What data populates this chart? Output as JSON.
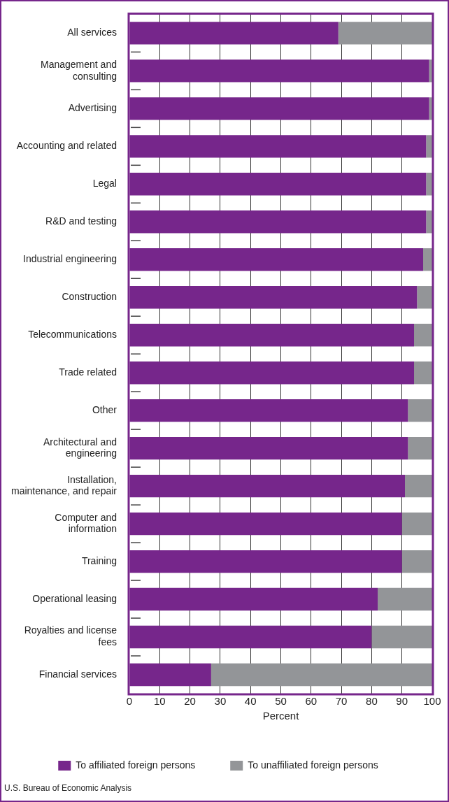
{
  "chart_data": {
    "type": "bar",
    "orientation": "horizontal",
    "stacked": true,
    "xlabel": "Percent",
    "categories": [
      "All services",
      "Management and consulting",
      "Advertising",
      "Accounting and related",
      "Legal",
      "R&D and testing",
      "Industrial engineering",
      "Construction",
      "Telecommunications",
      "Trade related",
      "Other",
      "Architectural and engineering",
      "Installation, maintenance, and repair",
      "Computer and information",
      "Training",
      "Operational leasing",
      "Royalties and license fees",
      "Financial services"
    ],
    "series": [
      {
        "name": "To affiliated foreign persons",
        "color": "#76268b",
        "values": [
          69,
          99,
          99,
          98,
          98,
          98,
          97,
          95,
          94,
          94,
          92,
          92,
          91,
          90,
          90,
          82,
          80,
          27
        ]
      },
      {
        "name": "To unaffiliated foreign persons",
        "color": "#939598",
        "values": [
          31,
          1,
          1,
          2,
          2,
          2,
          3,
          5,
          6,
          6,
          8,
          8,
          9,
          10,
          10,
          18,
          20,
          73
        ]
      }
    ],
    "xlim": [
      0,
      100
    ],
    "xticks": [
      0,
      10,
      20,
      30,
      40,
      50,
      60,
      70,
      80,
      90,
      100
    ],
    "grid": "x",
    "legend": "bottom",
    "annotations": [
      "U.S. Bureau of Economic Analysis"
    ]
  }
}
